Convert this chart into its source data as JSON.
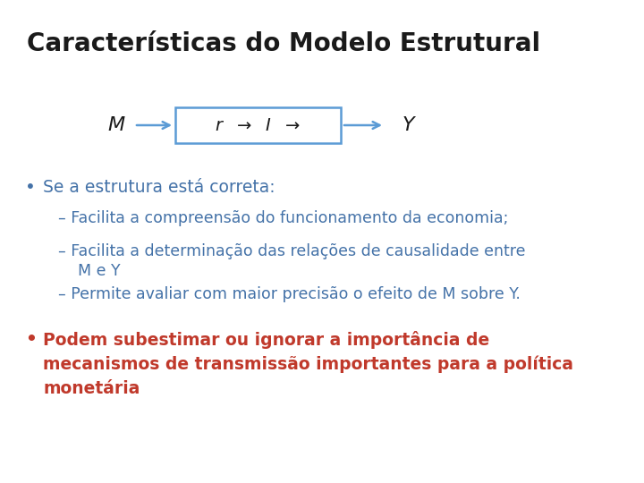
{
  "title": "Características do Modelo Estrutural",
  "title_fontsize": 20,
  "title_color": "#1a1a1a",
  "title_bold": true,
  "bg_color": "#ffffff",
  "diagram": {
    "M_label": "M",
    "Y_label": "Y",
    "arrow_color": "#5b9bd5",
    "box_edge_color": "#5b9bd5",
    "box_facecolor": "#ffffff",
    "label_color": "#1a1a1a"
  },
  "bullet1_bullet": "•",
  "bullet1_text": "Se a estrutura está correta:",
  "bullet1_color": "#4472a8",
  "bullet1_fontsize": 13.5,
  "sub_bullets": [
    {
      "text": "– Facilita a compreensão do funcionamento da economia;",
      "color": "#4472a8",
      "fontsize": 12.5
    },
    {
      "text": "– Facilita a determinação das relações de causalidade entre\n    M e Y",
      "color": "#4472a8",
      "fontsize": 12.5
    },
    {
      "text": "– Permite avaliar com maior precisão o efeito de M sobre Y.",
      "color": "#4472a8",
      "fontsize": 12.5
    }
  ],
  "bullet2_bullet": "•",
  "bullet2_text": "Podem subestimar ou ignorar a importância de\nmecanismos de transmissão importantes para a política\nmonetária",
  "bullet2_color": "#c0392b",
  "bullet2_fontsize": 13.5
}
